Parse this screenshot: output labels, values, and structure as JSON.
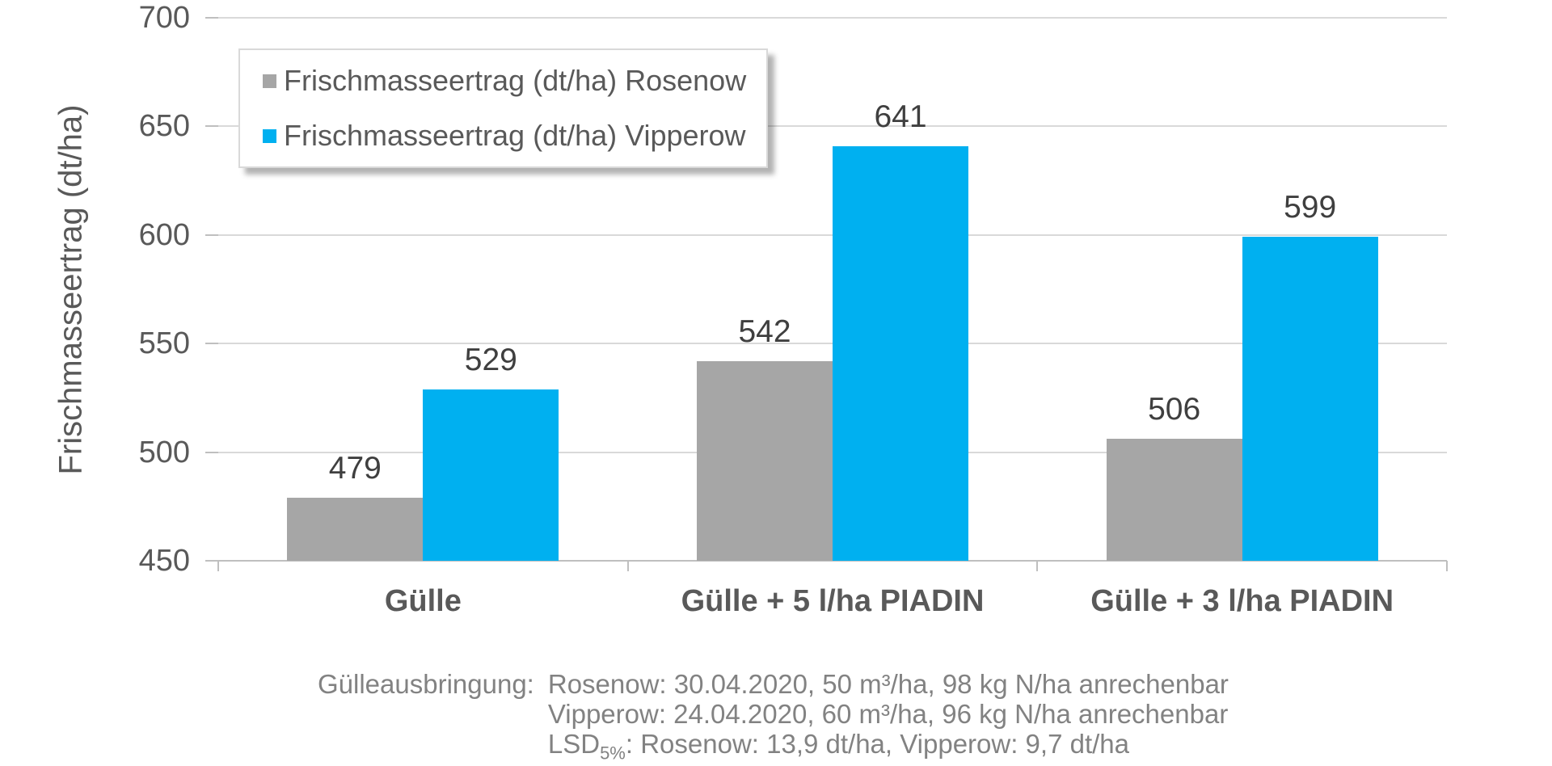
{
  "chart_data": {
    "type": "bar",
    "title": "",
    "categories": [
      "Gülle",
      "Gülle + 5 l/ha PIADIN",
      "Gülle + 3 l/ha PIADIN"
    ],
    "series": [
      {
        "name": "Frischmasseertrag (dt/ha) Rosenow",
        "key": "rosenow",
        "color": "#a6a6a6",
        "values": [
          479,
          542,
          506
        ]
      },
      {
        "name": "Frischmasseertrag (dt/ha) Vipperow",
        "key": "vipperow",
        "color": "#00b0f0",
        "values": [
          529,
          641,
          599
        ]
      }
    ],
    "xlabel": "",
    "ylabel": "Frischmasseertrag (dt/ha)",
    "ylim": [
      450,
      700
    ],
    "yticks": [
      450,
      500,
      550,
      600,
      650,
      700
    ],
    "grid": true,
    "legend_position": "top-left",
    "data_labels": true
  },
  "footer": {
    "label": "Gülleausbringung:",
    "line1": "Rosenow: 30.04.2020, 50 m³/ha, 98 kg N/ha anrechenbar",
    "line2": "Vipperow: 24.04.2020, 60 m³/ha, 96 kg N/ha anrechenbar",
    "lsd_prefix": "LSD",
    "lsd_sub": "5%",
    "lsd_rest": ": Rosenow: 13,9 dt/ha, Vipperow: 9,7 dt/ha"
  },
  "colors": {
    "bar_rosenow": "#a6a6a6",
    "bar_vipperow": "#00b0f0",
    "gridline": "#d9d9d9",
    "axis_line": "#bfbfbf",
    "tick_label": "#595959",
    "data_label": "#3f3f3f",
    "category_label": "#595959",
    "legend_text": "#595959",
    "footer_text": "#828282",
    "legend_border": "#d9d9d9"
  }
}
